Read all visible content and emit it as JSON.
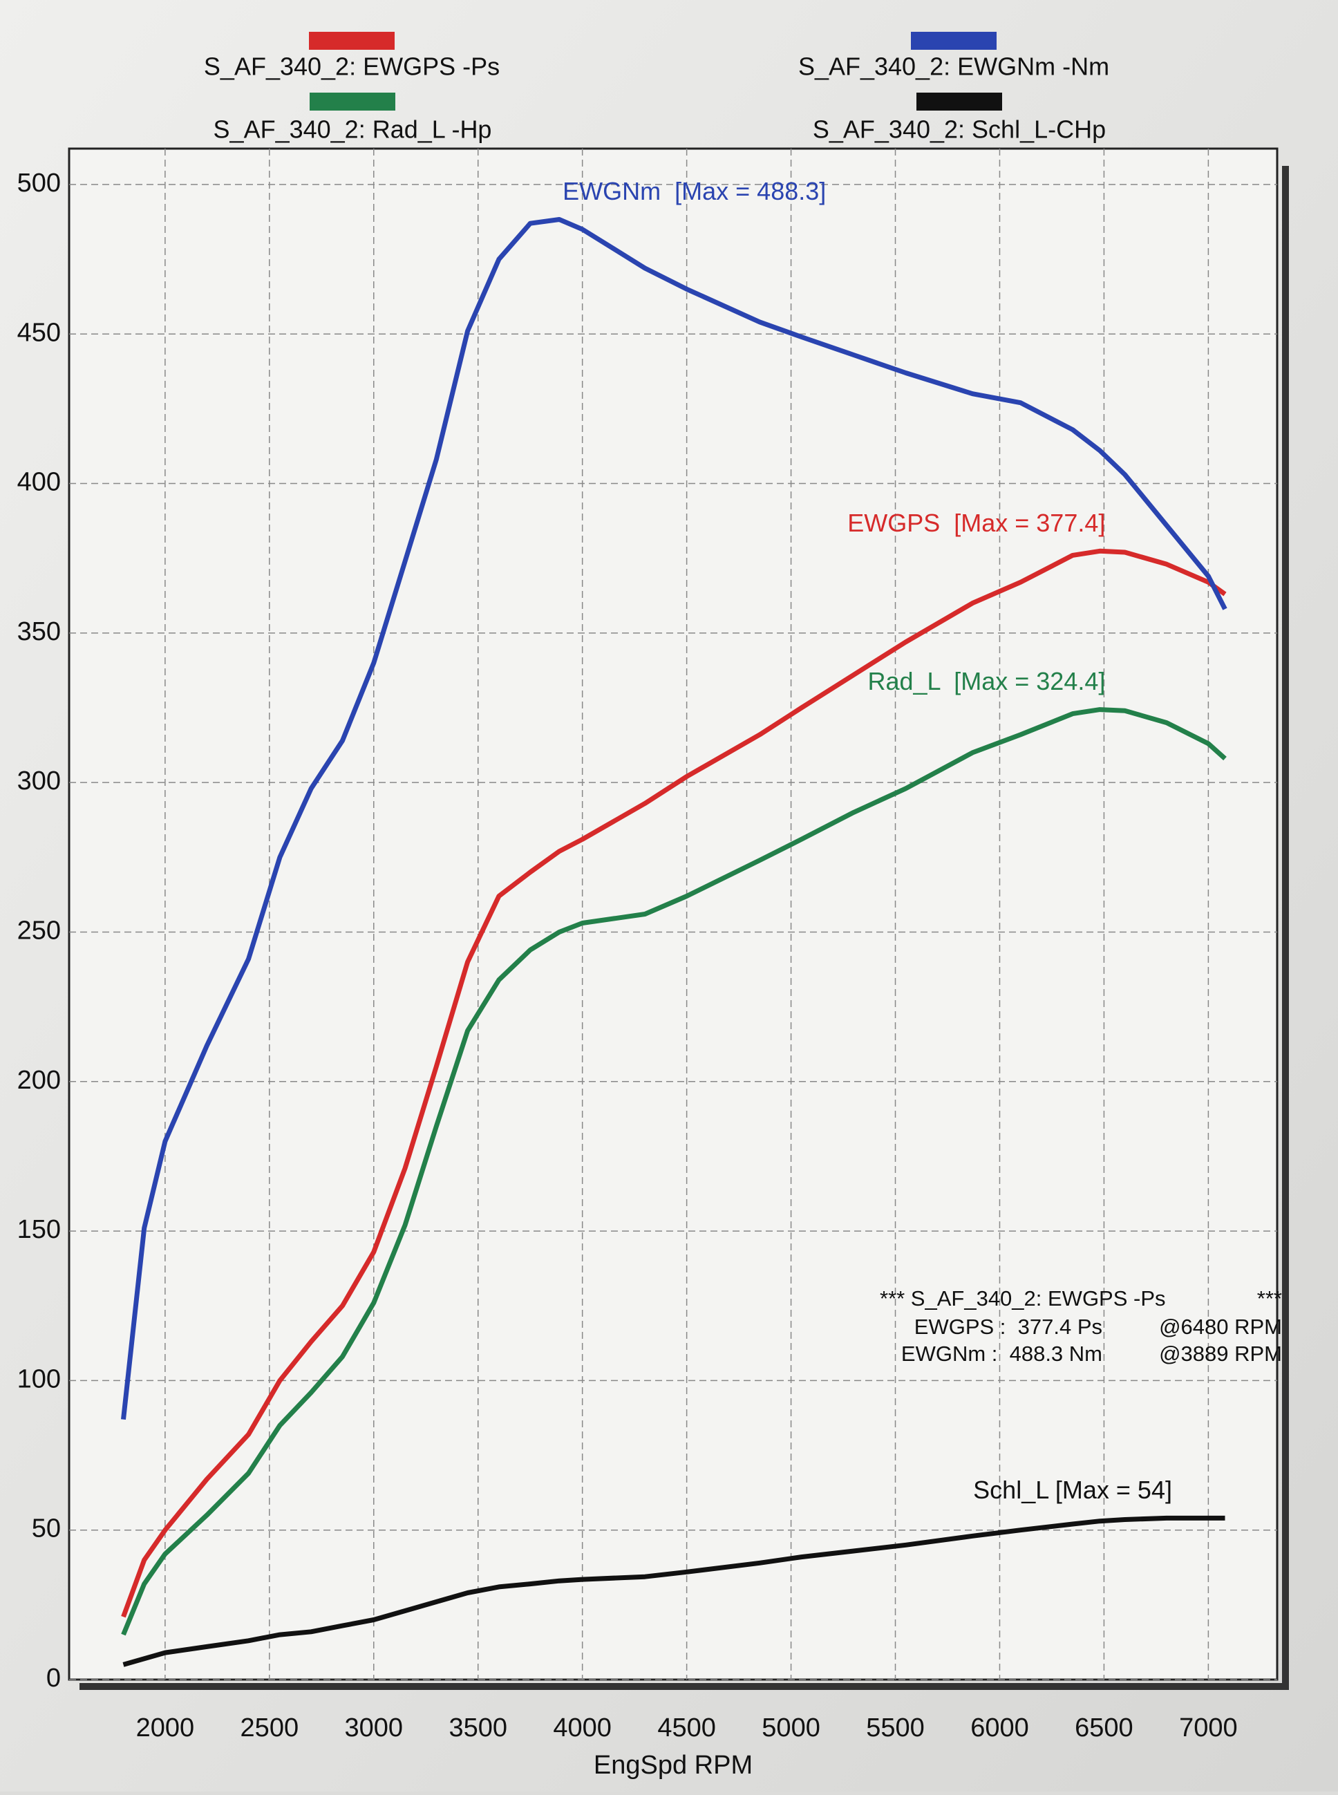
{
  "chart_data": {
    "type": "line",
    "x_label": "EngSpd RPM",
    "x": [
      1800,
      1900,
      2000,
      2200,
      2400,
      2550,
      2700,
      2850,
      3000,
      3150,
      3300,
      3450,
      3600,
      3750,
      3889,
      4000,
      4300,
      4500,
      4850,
      5050,
      5300,
      5550,
      5870,
      6100,
      6350,
      6480,
      6600,
      6800,
      7000,
      7080
    ],
    "series": [
      {
        "name": "S_AF_340_2: EWGPS -Ps",
        "color": "#d62a2a",
        "annotation": "EWGPS  [Max = 377.4]",
        "values": [
          21,
          40,
          50,
          67,
          82,
          100,
          113,
          125,
          143,
          171,
          205,
          240,
          262,
          270,
          277,
          281,
          293,
          302,
          316,
          325,
          336,
          347,
          360,
          367,
          376,
          377.4,
          377,
          373,
          367,
          363
        ]
      },
      {
        "name": "S_AF_340_2: EWGNm -Nm",
        "color": "#2a44b0",
        "annotation": "EWGNm  [Max = 488.3]",
        "values": [
          87,
          151,
          180,
          212,
          241,
          275,
          298,
          314,
          340,
          374,
          408,
          451,
          475,
          487,
          488.3,
          485,
          472,
          465,
          454,
          449,
          443,
          437,
          430,
          427,
          418,
          411,
          403,
          386,
          369,
          358
        ]
      },
      {
        "name": "S_AF_340_2: Rad_L -Hp",
        "color": "#23804a",
        "annotation": "Rad_L  [Max = 324.4]",
        "values": [
          15,
          32,
          42,
          55,
          69,
          85,
          96,
          108,
          126,
          152,
          185,
          217,
          234,
          244,
          250,
          253,
          256,
          262,
          274,
          281,
          290,
          298,
          310,
          316,
          323,
          324.4,
          324,
          320,
          313,
          308
        ]
      },
      {
        "name": "S_AF_340_2: Schl_L-CHp",
        "color": "#111111",
        "annotation": "Schl_L [Max = 54]",
        "values": [
          5,
          7,
          9,
          11,
          13,
          15,
          16,
          18,
          20,
          23,
          26,
          29,
          31,
          32,
          33,
          33.5,
          34.4,
          36,
          39,
          41,
          43,
          45,
          48,
          50,
          52,
          53,
          53.5,
          54,
          54,
          54
        ]
      }
    ],
    "xlim": [
      1540,
      7330
    ],
    "xticks": [
      2000,
      2500,
      3000,
      3500,
      4000,
      4500,
      5000,
      5500,
      6000,
      6500,
      7000
    ],
    "ylim": [
      0,
      512
    ],
    "yticks": [
      0,
      50,
      100,
      150,
      200,
      250,
      300,
      350,
      400,
      450,
      500
    ],
    "grid": true,
    "summary": {
      "header": [
        "*** S_AF_340_2: EWGPS -Ps",
        "***"
      ],
      "rows": [
        [
          "EWGPS :  377.4 Ps",
          "@6480 RPM"
        ],
        [
          "EWGNm :  488.3 Nm",
          "@3889 RPM"
        ]
      ]
    }
  }
}
